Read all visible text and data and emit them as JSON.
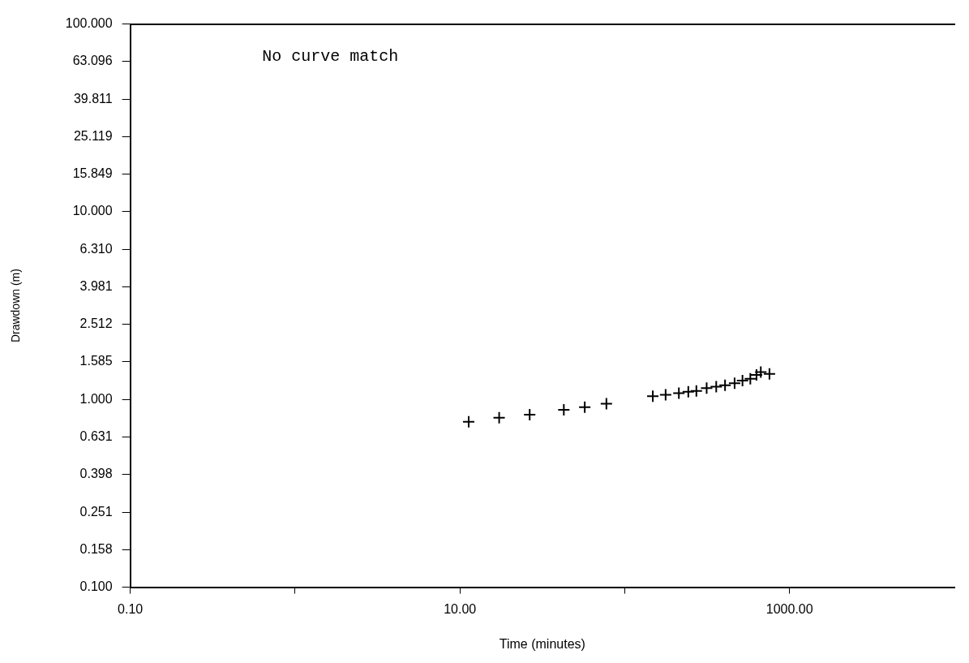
{
  "chart_data": {
    "type": "scatter",
    "xlabel": "Time (minutes)",
    "ylabel": "Drawdown (m)",
    "log": "xy",
    "marker": "cross",
    "grid": false,
    "legend": false,
    "annotations": [
      "No curve match"
    ],
    "xlim": [
      0.1,
      10000
    ],
    "xticks": [
      {
        "value": 0.1,
        "label": "0.10"
      },
      {
        "value": 1,
        "label": null
      },
      {
        "value": 10,
        "label": "10.00"
      },
      {
        "value": 100,
        "label": null
      },
      {
        "value": 1000,
        "label": "1000.00"
      }
    ],
    "ylim": [
      0.1,
      100
    ],
    "yticks": [
      {
        "value": 0.1,
        "label": "0.100"
      },
      {
        "value": 0.158,
        "label": "0.158"
      },
      {
        "value": 0.251,
        "label": "0.251"
      },
      {
        "value": 0.398,
        "label": "0.398"
      },
      {
        "value": 0.631,
        "label": "0.631"
      },
      {
        "value": 1,
        "label": "1.000"
      },
      {
        "value": 1.585,
        "label": "1.585"
      },
      {
        "value": 2.512,
        "label": "2.512"
      },
      {
        "value": 3.981,
        "label": "3.981"
      },
      {
        "value": 6.31,
        "label": "6.310"
      },
      {
        "value": 10,
        "label": "10.000"
      },
      {
        "value": 15.849,
        "label": "15.849"
      },
      {
        "value": 25.119,
        "label": "25.119"
      },
      {
        "value": 39.811,
        "label": "39.811"
      },
      {
        "value": 63.096,
        "label": "63.096"
      },
      {
        "value": 100,
        "label": "100.000"
      }
    ],
    "series": [
      {
        "color": "#000000",
        "x": [
          11.3,
          17.3,
          26.5,
          42.7,
          57.2,
          77.4,
          148,
          177,
          213,
          243,
          272,
          314,
          359,
          406,
          464,
          518,
          578,
          630,
          669,
          755
        ],
        "values": [
          0.76,
          0.8,
          0.83,
          0.88,
          0.91,
          0.95,
          1.04,
          1.06,
          1.08,
          1.1,
          1.11,
          1.15,
          1.17,
          1.19,
          1.22,
          1.26,
          1.29,
          1.35,
          1.4,
          1.37
        ]
      }
    ]
  }
}
